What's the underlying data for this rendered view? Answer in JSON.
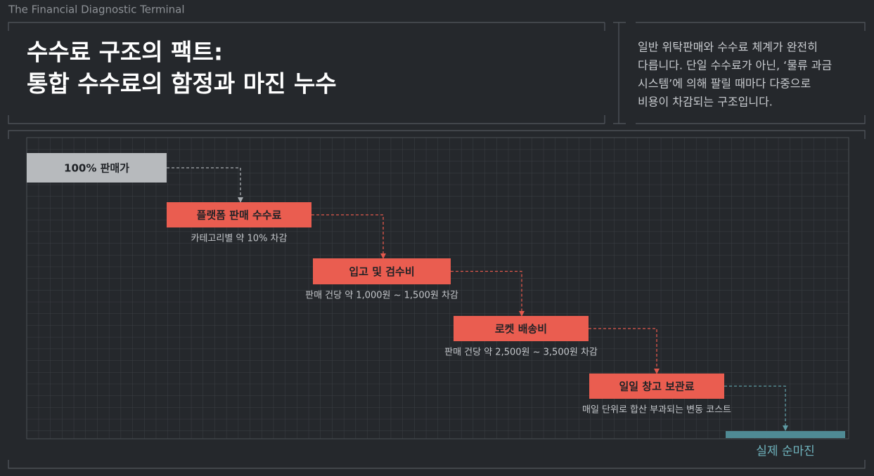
{
  "header": "The Financial Diagnostic Terminal",
  "title": [
    "수수료 구조의 팩트:",
    "통합 수수료의 함정과 마진 누수"
  ],
  "description": [
    "일반 위탁판매와 수수료 체계가 완전히",
    "다릅니다. 단일 수수료가 아닌, ‘물류 과금",
    "시스템’에 의해 팔릴 때마다 다중으로",
    "비용이 차감되는 구조입니다."
  ],
  "nodes": [
    {
      "label": "100% 판매가"
    },
    {
      "label": "플랫폼 판매 수수료",
      "note": "카테고리별 약 10% 차감"
    },
    {
      "label": "입고 및 검수비",
      "note": "판매 건당 약 1,000원 ~ 1,500원 차감"
    },
    {
      "label": "로켓 배송비",
      "note": "판매 건당 약 2,500원 ~ 3,500원 차감"
    },
    {
      "label": "일일 창고 보관료",
      "note": "매일 단위로 합산 부과되는 변동 코스트"
    }
  ],
  "result": {
    "label": "실제 순마진"
  }
}
